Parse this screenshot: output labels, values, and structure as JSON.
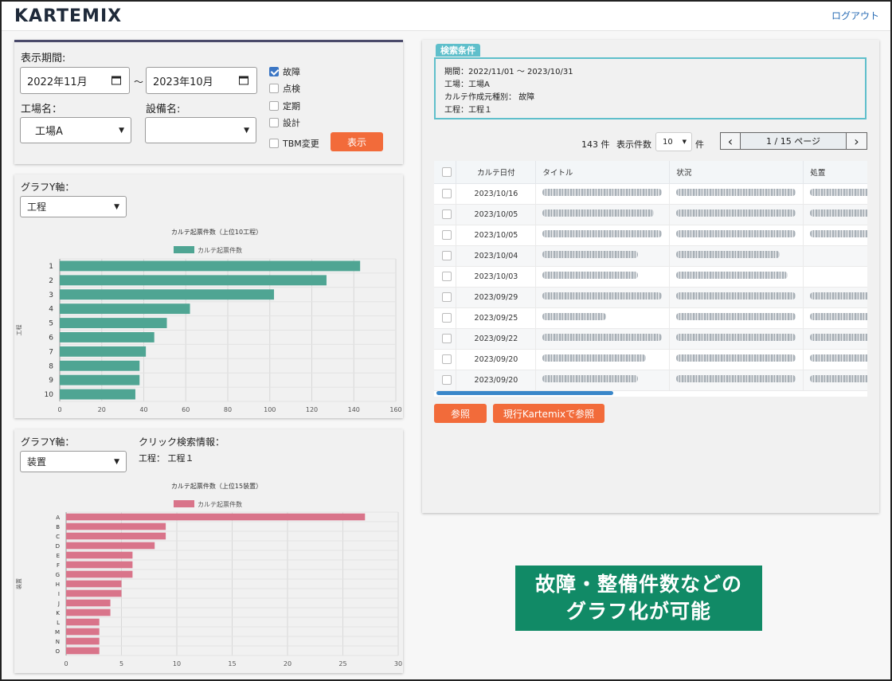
{
  "app": {
    "logo": "KARTEMIX",
    "logout": "ログアウト"
  },
  "filter": {
    "period_label": "表示期間:",
    "date_from": "2022年11月",
    "date_sep": "～",
    "date_to": "2023年10月",
    "factory_label": "工場名：",
    "factory_value": "工場A",
    "equipment_label": "設備名:",
    "equipment_value": "",
    "checks": [
      {
        "label": "故障",
        "checked": true
      },
      {
        "label": "点検",
        "checked": false
      },
      {
        "label": "定期",
        "checked": false
      },
      {
        "label": "設計",
        "checked": false
      },
      {
        "label": "TBM変更",
        "checked": false
      }
    ],
    "show_button": "表示"
  },
  "chart1_panel": {
    "y_axis_label": "グラフY軸：",
    "y_axis_value": "工程"
  },
  "chart2_panel": {
    "y_axis_label": "グラフY軸：",
    "y_axis_value": "装置",
    "click_info_label": "クリック検索情報：",
    "click_info_value": "工程： 工程１"
  },
  "chart_data": [
    {
      "type": "bar",
      "orientation": "horizontal",
      "title": "カルテ起票件数（上位10工程）",
      "ylabel": "工程",
      "categories": [
        "1",
        "2",
        "3",
        "4",
        "5",
        "6",
        "7",
        "8",
        "9",
        "10"
      ],
      "series": [
        {
          "name": "カルテ起票件数",
          "values": [
            143,
            127,
            102,
            62,
            51,
            45,
            41,
            38,
            38,
            36
          ]
        }
      ],
      "xlim": [
        0,
        160
      ],
      "xticks": [
        0,
        20,
        40,
        60,
        80,
        100,
        120,
        140,
        160
      ],
      "color": "#4fa593",
      "legend": "top-center",
      "grid": true
    },
    {
      "type": "bar",
      "orientation": "horizontal",
      "title": "カルテ起票件数（上位15装置）",
      "ylabel": "装置",
      "categories": [
        "A",
        "B",
        "C",
        "D",
        "E",
        "F",
        "G",
        "H",
        "I",
        "J",
        "K",
        "L",
        "M",
        "N",
        "O"
      ],
      "series": [
        {
          "name": "カルテ起票件数",
          "values": [
            27,
            9,
            9,
            8,
            6,
            6,
            6,
            5,
            5,
            4,
            4,
            3,
            3,
            3,
            3
          ]
        }
      ],
      "xlim": [
        0,
        30
      ],
      "xticks": [
        0,
        5,
        10,
        15,
        20,
        25,
        30
      ],
      "color": "#d9748a",
      "legend": "top-center",
      "grid": true
    }
  ],
  "conditions": {
    "tab": "検索条件",
    "period": "期間：2022/11/01 ～ 2023/10/31",
    "factory": "工場：工場A",
    "type": "カルテ作成元種別： 故障",
    "process": "工程：工程１"
  },
  "results": {
    "count": "143 件",
    "page_size_label": "表示件数",
    "page_size": "10",
    "page_size_unit": "件",
    "prev": "‹",
    "page_info": "1 / 15 ページ",
    "next": "›",
    "columns": [
      "カルテ日付",
      "タイトル",
      "状況",
      "処置"
    ],
    "rows": [
      {
        "date": "2023/10/16",
        "w": [
          150,
          150,
          80
        ]
      },
      {
        "date": "2023/10/05",
        "w": [
          140,
          150,
          80
        ]
      },
      {
        "date": "2023/10/05",
        "w": [
          150,
          150,
          80
        ]
      },
      {
        "date": "2023/10/04",
        "w": [
          120,
          130,
          0
        ]
      },
      {
        "date": "2023/10/03",
        "w": [
          120,
          140,
          0
        ]
      },
      {
        "date": "2023/09/29",
        "w": [
          150,
          150,
          80
        ]
      },
      {
        "date": "2023/09/25",
        "w": [
          80,
          150,
          80
        ]
      },
      {
        "date": "2023/09/22",
        "w": [
          150,
          150,
          80
        ]
      },
      {
        "date": "2023/09/20",
        "w": [
          130,
          150,
          80
        ]
      },
      {
        "date": "2023/09/20",
        "w": [
          120,
          150,
          80
        ]
      }
    ],
    "ref_button": "参照",
    "legacy_button": "現行Kartemixで参照"
  },
  "callout": {
    "line1": "故障・整備件数などの",
    "line2": "グラフ化が可能"
  }
}
